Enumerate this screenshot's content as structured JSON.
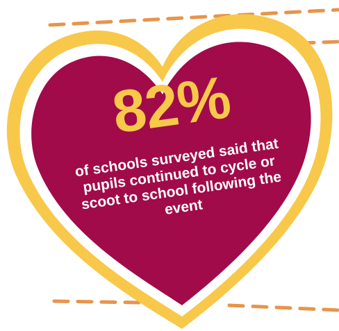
{
  "stat": {
    "value": "82%",
    "caption": "of schools surveyed said that pupils continued to cycle or scoot to school following the event"
  },
  "colors": {
    "heart_fill": "#a10b4a",
    "heart_border": "#f8c84a",
    "stat_value": "#f8c84a",
    "caption_text": "#ffffff",
    "dashed_lines": "#e8944a"
  }
}
